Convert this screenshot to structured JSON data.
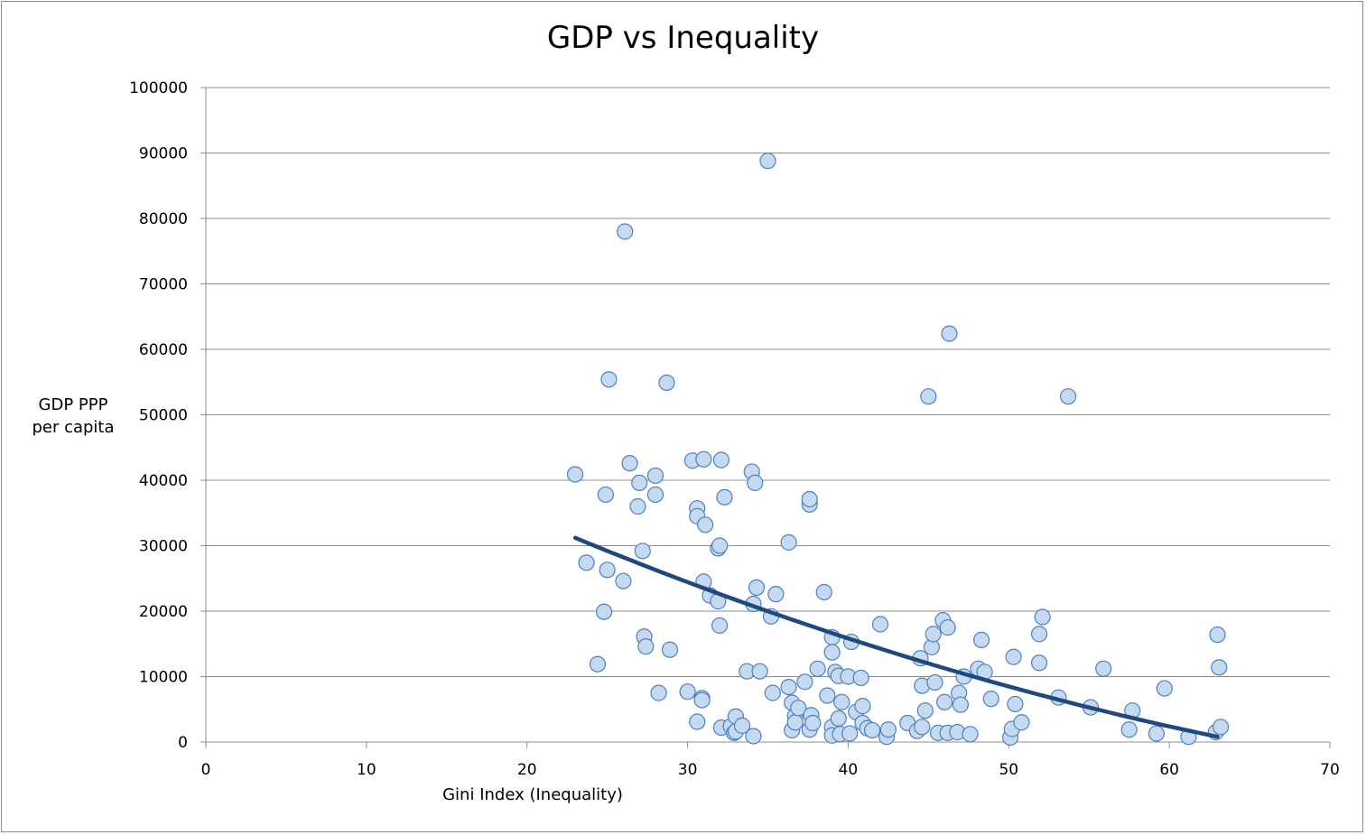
{
  "chart_data": {
    "type": "scatter",
    "title": "GDP vs Inequality",
    "xlabel": "Gini Index (Inequality)",
    "ylabel_lines": [
      "GDP PPP",
      "per capita"
    ],
    "xlim": [
      0,
      70
    ],
    "ylim": [
      0,
      100000
    ],
    "x_ticks": [
      0,
      10,
      20,
      30,
      40,
      50,
      60,
      70
    ],
    "y_ticks": [
      0,
      10000,
      20000,
      30000,
      40000,
      50000,
      60000,
      70000,
      80000,
      90000,
      100000
    ],
    "grid": "horizontal",
    "legend": "none",
    "colors": {
      "marker_fill": "#c5d9f1",
      "marker_stroke": "#4f81bd",
      "trend": "#1f497d",
      "grid": "#8c8c8c"
    },
    "series": [
      {
        "points": [
          [
            23.0,
            40900
          ],
          [
            23.7,
            27400
          ],
          [
            24.4,
            11900
          ],
          [
            24.8,
            19900
          ],
          [
            24.9,
            37800
          ],
          [
            25.0,
            26300
          ],
          [
            25.1,
            55400
          ],
          [
            26.0,
            24600
          ],
          [
            26.1,
            78000
          ],
          [
            26.4,
            42600
          ],
          [
            26.9,
            36000
          ],
          [
            27.0,
            39600
          ],
          [
            27.2,
            29200
          ],
          [
            27.3,
            16100
          ],
          [
            27.4,
            14600
          ],
          [
            28.0,
            40700
          ],
          [
            28.0,
            37800
          ],
          [
            28.2,
            7500
          ],
          [
            28.7,
            54900
          ],
          [
            28.9,
            14100
          ],
          [
            30.0,
            7700
          ],
          [
            30.3,
            43000
          ],
          [
            30.6,
            3100
          ],
          [
            30.6,
            35700
          ],
          [
            30.6,
            34500
          ],
          [
            30.9,
            6700
          ],
          [
            30.9,
            6400
          ],
          [
            31.0,
            43200
          ],
          [
            31.0,
            24500
          ],
          [
            31.1,
            33200
          ],
          [
            31.4,
            22400
          ],
          [
            31.9,
            21500
          ],
          [
            31.9,
            29600
          ],
          [
            32.0,
            30000
          ],
          [
            32.0,
            17800
          ],
          [
            32.1,
            2200
          ],
          [
            32.1,
            43100
          ],
          [
            32.3,
            37400
          ],
          [
            32.7,
            2400
          ],
          [
            32.9,
            1400
          ],
          [
            33.0,
            3900
          ],
          [
            33.0,
            1600
          ],
          [
            33.4,
            2500
          ],
          [
            33.7,
            10800
          ],
          [
            34.0,
            41300
          ],
          [
            34.1,
            21100
          ],
          [
            34.1,
            900
          ],
          [
            34.2,
            39600
          ],
          [
            34.3,
            23600
          ],
          [
            34.5,
            10800
          ],
          [
            35.0,
            88800
          ],
          [
            35.2,
            19200
          ],
          [
            35.3,
            7500
          ],
          [
            35.5,
            22600
          ],
          [
            36.3,
            30500
          ],
          [
            36.3,
            8400
          ],
          [
            36.5,
            6000
          ],
          [
            36.5,
            1800
          ],
          [
            36.7,
            4000
          ],
          [
            36.7,
            3000
          ],
          [
            36.9,
            5200
          ],
          [
            37.3,
            9200
          ],
          [
            37.6,
            36300
          ],
          [
            37.6,
            37100
          ],
          [
            37.6,
            1900
          ],
          [
            37.7,
            4100
          ],
          [
            37.8,
            2900
          ],
          [
            38.1,
            11200
          ],
          [
            38.5,
            22900
          ],
          [
            38.7,
            7100
          ],
          [
            39.0,
            16000
          ],
          [
            39.0,
            13700
          ],
          [
            39.0,
            2300
          ],
          [
            39.0,
            1000
          ],
          [
            39.2,
            10700
          ],
          [
            39.4,
            3600
          ],
          [
            39.4,
            10100
          ],
          [
            39.5,
            1200
          ],
          [
            39.6,
            6100
          ],
          [
            40.0,
            10000
          ],
          [
            40.1,
            1300
          ],
          [
            40.2,
            15300
          ],
          [
            40.5,
            4600
          ],
          [
            40.8,
            9800
          ],
          [
            40.9,
            5500
          ],
          [
            40.9,
            2900
          ],
          [
            41.2,
            2100
          ],
          [
            41.5,
            1800
          ],
          [
            42.0,
            18000
          ],
          [
            42.4,
            800
          ],
          [
            42.5,
            1900
          ],
          [
            43.7,
            2900
          ],
          [
            44.3,
            1700
          ],
          [
            44.5,
            12800
          ],
          [
            44.6,
            8600
          ],
          [
            44.6,
            2300
          ],
          [
            44.8,
            4800
          ],
          [
            45.0,
            52800
          ],
          [
            45.2,
            14500
          ],
          [
            45.3,
            16500
          ],
          [
            45.4,
            9100
          ],
          [
            45.6,
            1400
          ],
          [
            45.9,
            18600
          ],
          [
            46.0,
            6100
          ],
          [
            46.2,
            1400
          ],
          [
            46.2,
            17500
          ],
          [
            46.3,
            62400
          ],
          [
            46.8,
            1500
          ],
          [
            46.9,
            7500
          ],
          [
            47.0,
            5700
          ],
          [
            47.2,
            10000
          ],
          [
            47.6,
            1200
          ],
          [
            48.1,
            11200
          ],
          [
            48.3,
            15600
          ],
          [
            48.5,
            10700
          ],
          [
            48.9,
            6600
          ],
          [
            50.1,
            700
          ],
          [
            50.2,
            2000
          ],
          [
            50.3,
            13000
          ],
          [
            50.4,
            5800
          ],
          [
            50.8,
            3000
          ],
          [
            51.9,
            16500
          ],
          [
            51.9,
            12100
          ],
          [
            52.1,
            19100
          ],
          [
            53.1,
            6800
          ],
          [
            53.7,
            52800
          ],
          [
            55.1,
            5300
          ],
          [
            55.9,
            11200
          ],
          [
            57.5,
            1900
          ],
          [
            57.7,
            4800
          ],
          [
            59.2,
            1300
          ],
          [
            59.7,
            8200
          ],
          [
            61.2,
            800
          ],
          [
            62.9,
            1500
          ],
          [
            63.0,
            16400
          ],
          [
            63.1,
            11400
          ],
          [
            63.2,
            2300
          ]
        ]
      }
    ],
    "trendline": {
      "type": "polynomial",
      "x_start": 23.0,
      "x_end": 63.0,
      "y_start": 31200,
      "y_end": 800
    }
  }
}
